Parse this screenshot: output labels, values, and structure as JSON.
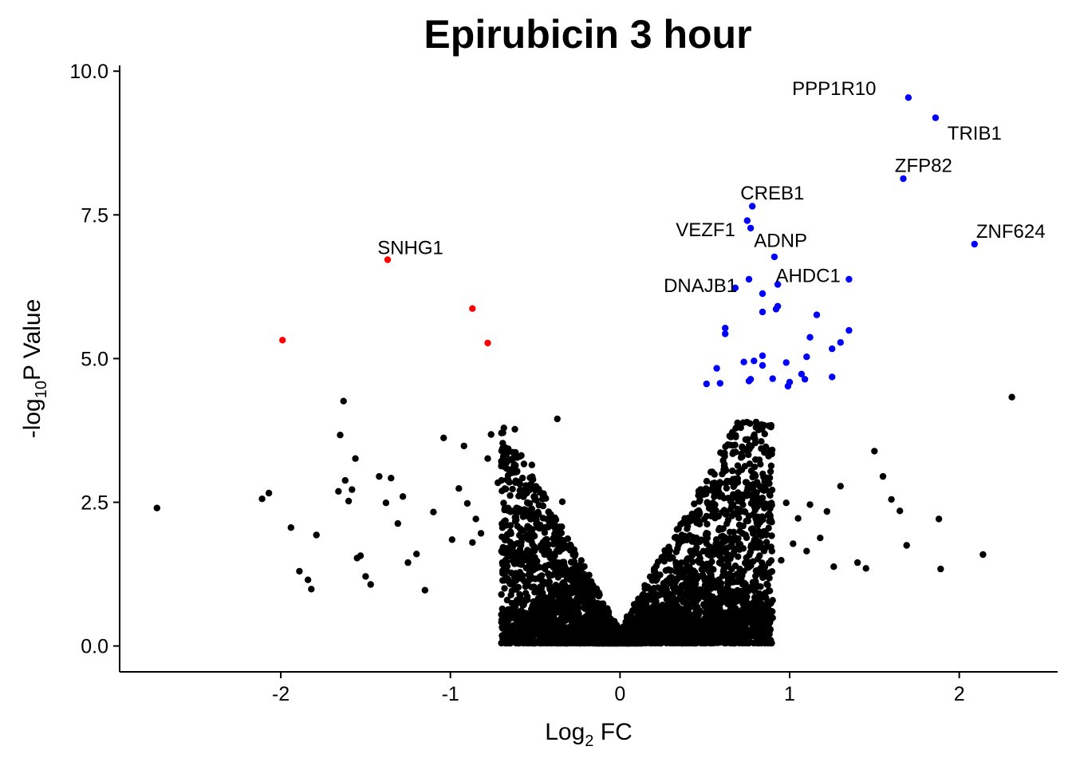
{
  "chart_data": {
    "type": "scatter",
    "title": "Epirubicin 3 hour",
    "xlabel": {
      "base": "Log",
      "sub": "2",
      "rest": " FC"
    },
    "ylabel": {
      "pre": "-log",
      "sub": "10",
      "rest": "P Value"
    },
    "xlim": [
      -2.95,
      2.58
    ],
    "ylim": [
      -0.45,
      10.1
    ],
    "x_ticks": [
      -2,
      -1,
      0,
      1,
      2
    ],
    "x_tick_labels": [
      "-2",
      "-1",
      "0",
      "1",
      "2"
    ],
    "y_ticks": [
      0,
      2.5,
      5,
      7.5,
      10
    ],
    "y_tick_labels": [
      "0.0",
      "2.5",
      "5.0",
      "7.5",
      "10.0"
    ],
    "grid": false,
    "legend": "none",
    "colors": {
      "up": "#0000ff",
      "down": "#ff0000",
      "ns": "#000000"
    },
    "series": [
      {
        "group": "down",
        "color": "#ff0000",
        "x": [
          -1.37,
          -1.99,
          -0.87,
          -0.78
        ],
        "y": [
          6.72,
          5.32,
          5.87,
          5.27
        ]
      },
      {
        "group": "up",
        "color": "#0000ff",
        "x": [
          1.7,
          1.86,
          1.67,
          2.09,
          0.78,
          0.75,
          0.77,
          0.91,
          1.35,
          0.76,
          0.68,
          0.93,
          0.84,
          0.93,
          0.92,
          0.84,
          1.16,
          0.62,
          1.35,
          1.12,
          0.62,
          1.3,
          1.25,
          1.1,
          0.84,
          0.79,
          0.73,
          0.98,
          0.84,
          0.57,
          1.07,
          1.25,
          0.9,
          1.0,
          1.09,
          0.77,
          0.59,
          0.76,
          0.51,
          0.99
        ],
        "y": [
          9.54,
          9.19,
          8.13,
          6.99,
          7.65,
          7.4,
          7.27,
          6.77,
          6.38,
          6.38,
          6.23,
          6.29,
          6.13,
          5.91,
          5.86,
          5.81,
          5.76,
          5.53,
          5.49,
          5.37,
          5.43,
          5.28,
          5.17,
          5.03,
          5.05,
          4.96,
          4.94,
          4.93,
          4.88,
          4.83,
          4.73,
          4.68,
          4.65,
          4.59,
          4.64,
          4.64,
          4.57,
          4.61,
          4.56,
          4.52
        ]
      },
      {
        "group": "ns",
        "color": "#000000",
        "x": [
          -2.73,
          -2.11,
          -2.07,
          -1.94,
          -1.89,
          -1.84,
          -1.82,
          -1.79,
          -1.65,
          -1.66,
          -1.63,
          -1.62,
          -1.6,
          -1.58,
          -1.56,
          -1.55,
          -1.53,
          -1.5,
          -1.47,
          -1.42,
          -1.38,
          -1.35,
          -1.31,
          -1.28,
          -1.25,
          -1.2,
          -1.15,
          -1.1,
          -1.04,
          -0.99,
          -0.95,
          -0.92,
          -0.9,
          -0.87,
          -0.85,
          -0.82,
          -0.78,
          -0.76,
          -0.72,
          -0.7,
          -0.66,
          -0.62,
          -0.59,
          -0.55,
          -0.52,
          -0.48,
          -0.45,
          -0.41,
          -0.37,
          -0.34,
          1.5,
          1.55,
          1.6,
          1.65,
          1.69,
          1.88,
          1.89,
          2.14,
          2.31,
          1.4,
          1.45,
          1.3,
          1.22,
          1.12,
          1.05,
          0.98,
          0.95,
          0.88,
          1.18,
          1.1,
          1.02,
          1.26
        ],
        "y": [
          2.4,
          2.56,
          2.66,
          2.06,
          1.3,
          1.15,
          0.99,
          1.93,
          3.67,
          2.69,
          4.26,
          2.88,
          2.52,
          2.72,
          3.26,
          1.53,
          1.57,
          1.21,
          1.07,
          2.95,
          2.49,
          2.92,
          2.13,
          2.6,
          1.45,
          1.6,
          0.97,
          2.33,
          3.62,
          1.85,
          2.74,
          3.48,
          2.48,
          1.8,
          2.21,
          1.96,
          3.26,
          3.68,
          2.84,
          3.13,
          2.4,
          3.77,
          2.82,
          2.66,
          3.15,
          2.29,
          2.65,
          2.16,
          3.95,
          2.51,
          3.39,
          2.95,
          2.55,
          2.35,
          1.75,
          2.21,
          1.34,
          1.59,
          4.33,
          1.45,
          1.35,
          2.78,
          2.34,
          2.46,
          2.22,
          2.49,
          1.49,
          2.17,
          1.88,
          1.65,
          1.78,
          1.38
        ]
      }
    ],
    "cloud": {
      "left_x_range": [
        -0.7,
        0.0
      ],
      "right_x_range": [
        0.0,
        0.9
      ],
      "peak_left_x": -0.33,
      "peak_right_x": 0.33,
      "max_y": 3.9
    },
    "labels": [
      {
        "text": "PPP1R10",
        "x": 1.7,
        "y": 9.54,
        "anchor": "end",
        "dx": -0.19,
        "dy": 0.16
      },
      {
        "text": "TRIB1",
        "x": 1.86,
        "y": 9.19,
        "anchor": "start",
        "dx": 0.07,
        "dy": -0.27
      },
      {
        "text": "ZFP82",
        "x": 1.67,
        "y": 8.13,
        "anchor": "start",
        "dx": -0.05,
        "dy": 0.23
      },
      {
        "text": "CREB1",
        "x": 0.78,
        "y": 7.65,
        "anchor": "start",
        "dx": -0.07,
        "dy": 0.23
      },
      {
        "text": "VEZF1",
        "x": 0.75,
        "y": 7.4,
        "anchor": "end",
        "dx": -0.07,
        "dy": -0.16
      },
      {
        "text": "ADNP",
        "x": 0.91,
        "y": 6.77,
        "anchor": "start",
        "dx": -0.12,
        "dy": 0.28
      },
      {
        "text": "SNHG1",
        "x": -1.37,
        "y": 6.72,
        "anchor": "start",
        "dx": -0.06,
        "dy": 0.21
      },
      {
        "text": "ZNF624",
        "x": 2.09,
        "y": 6.99,
        "anchor": "start",
        "dx": 0.01,
        "dy": 0.22
      },
      {
        "text": "DNAJB1",
        "x": 0.76,
        "y": 6.38,
        "anchor": "end",
        "dx": -0.07,
        "dy": -0.11
      },
      {
        "text": "AHDC1",
        "x": 1.35,
        "y": 6.38,
        "anchor": "end",
        "dx": -0.05,
        "dy": 0.06
      }
    ]
  }
}
